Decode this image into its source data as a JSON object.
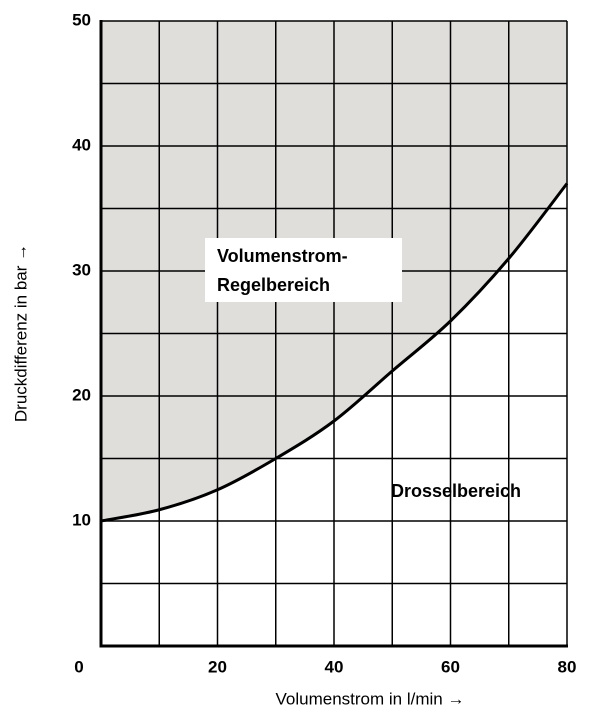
{
  "chart_data": {
    "type": "line",
    "x_label": "Volumenstrom in l/min →",
    "y_label": "Druckdifferenz in bar →",
    "annotations": [
      "Volumenstrom-",
      "Regelbereich",
      "Drosselbereich"
    ],
    "x": [
      0,
      10,
      20,
      30,
      40,
      50,
      60,
      70,
      80
    ],
    "series": [
      {
        "color": "#000000",
        "values": [
          10,
          10.9,
          12.5,
          15,
          18,
          22,
          26,
          31,
          37
        ]
      }
    ],
    "area_color": "#e0dedb",
    "xlim": [
      0,
      80
    ],
    "ylim": [
      0,
      50
    ],
    "xticks": [
      0,
      20,
      40,
      60,
      80
    ],
    "yticks": [
      10,
      20,
      30,
      40,
      50
    ],
    "x_minor_grid": [
      10,
      30,
      50,
      70
    ],
    "y_minor_grid": [
      5,
      15,
      25,
      35,
      45
    ],
    "grid": true
  }
}
